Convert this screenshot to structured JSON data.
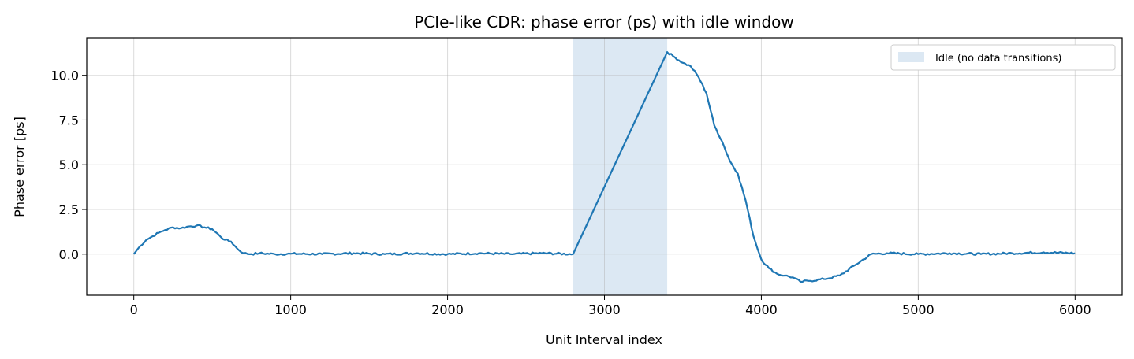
{
  "chart_data": {
    "type": "line",
    "title": "PCIe-like CDR: phase error (ps) with idle window",
    "xlabel": "Unit Interval index",
    "ylabel": "Phase error [ps]",
    "xlim": [
      -300,
      6300
    ],
    "ylim": [
      -2.3,
      12.1
    ],
    "xticks": [
      0,
      1000,
      2000,
      3000,
      4000,
      5000,
      6000
    ],
    "xtick_labels": [
      "0",
      "1000",
      "2000",
      "3000",
      "4000",
      "5000",
      "6000"
    ],
    "yticks": [
      0.0,
      2.5,
      5.0,
      7.5,
      10.0
    ],
    "ytick_labels": [
      "0.0",
      "2.5",
      "5.0",
      "7.5",
      "10.0"
    ],
    "grid": true,
    "legend": {
      "placement": "top-right",
      "entries": [
        "Idle (no data transitions)"
      ]
    },
    "shaded_region": {
      "label": "Idle (no data transitions)",
      "x_start": 2800,
      "x_end": 3400,
      "color": "#dce8f3"
    },
    "series": [
      {
        "color": "#1f77b4",
        "x": [
          0,
          40,
          80,
          120,
          160,
          200,
          250,
          300,
          350,
          400,
          450,
          500,
          550,
          580,
          620,
          660,
          700,
          750,
          800,
          900,
          1000,
          1200,
          1400,
          1600,
          1800,
          2000,
          2200,
          2400,
          2600,
          2800,
          3400,
          3450,
          3500,
          3550,
          3600,
          3650,
          3700,
          3750,
          3800,
          3850,
          3900,
          3950,
          4000,
          4050,
          4100,
          4150,
          4200,
          4250,
          4300,
          4400,
          4500,
          4600,
          4700,
          4800,
          5000,
          5200,
          5400,
          5600,
          5800,
          6000
        ],
        "y": [
          0.0,
          0.45,
          0.8,
          1.0,
          1.2,
          1.35,
          1.5,
          1.45,
          1.55,
          1.6,
          1.5,
          1.4,
          1.0,
          0.8,
          0.7,
          0.3,
          0.05,
          0.0,
          0.05,
          0.0,
          0.02,
          0.0,
          0.05,
          0.0,
          0.05,
          0.0,
          0.05,
          0.0,
          0.05,
          0.0,
          11.3,
          11.0,
          10.7,
          10.5,
          9.9,
          9.0,
          7.2,
          6.3,
          5.2,
          4.5,
          3.0,
          1.0,
          -0.3,
          -0.8,
          -1.1,
          -1.2,
          -1.3,
          -1.55,
          -1.5,
          -1.4,
          -1.2,
          -0.6,
          0.0,
          0.05,
          0.0,
          0.05,
          0.0,
          0.05,
          0.1,
          0.05
        ]
      }
    ]
  }
}
